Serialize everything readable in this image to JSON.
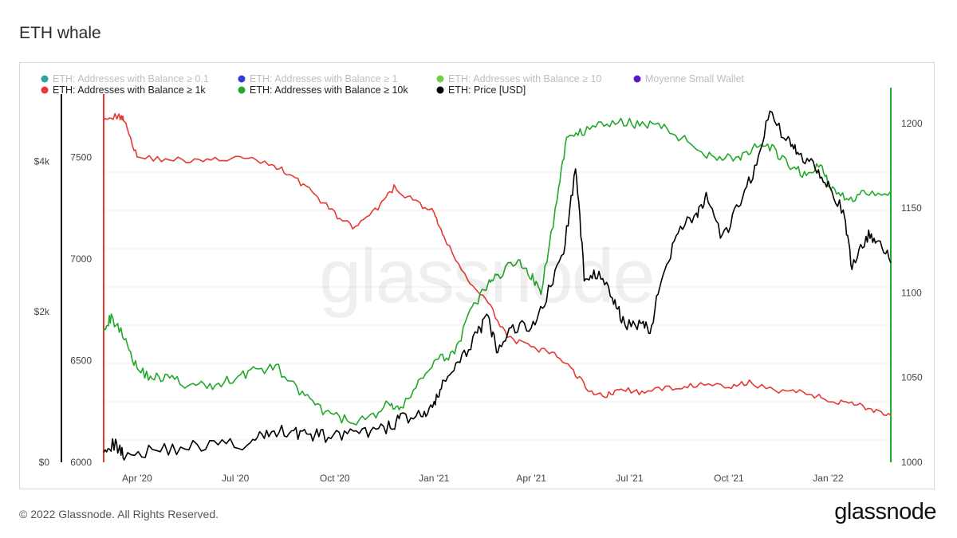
{
  "page": {
    "title": "ETH whale",
    "footer": "© 2022 Glassnode. All Rights Reserved.",
    "brand": "glassnode",
    "watermark": "glassnode"
  },
  "chart_data": {
    "type": "line",
    "x_ticks": [
      "Apr '20",
      "Jul '20",
      "Oct '20",
      "Jan '21",
      "Apr '21",
      "Jul '21",
      "Oct '21",
      "Jan '22"
    ],
    "x_range": [
      "2020-03-01",
      "2022-02-28"
    ],
    "axes": {
      "price_axis": {
        "ticks": [
          "$0",
          "$2k",
          "$4k"
        ],
        "range": [
          0,
          5000
        ],
        "color": "#000000"
      },
      "count_1k_axis": {
        "ticks": [
          "6000",
          "6500",
          "7000",
          "7500"
        ],
        "range": [
          6000,
          7850
        ],
        "color": "#e53935"
      },
      "count_10k_axis": {
        "ticks": [
          "1000",
          "1050",
          "1100",
          "1150",
          "1200"
        ],
        "range": [
          1000,
          1222
        ],
        "color": "#22a82a"
      }
    },
    "grid": true,
    "legend": [
      {
        "label": "ETH: Addresses with Balance ≥ 0.1",
        "color": "#2ba3a3",
        "disabled": true
      },
      {
        "label": "ETH: Addresses with Balance ≥ 1",
        "color": "#2f3fd0",
        "disabled": true
      },
      {
        "label": "ETH: Addresses with Balance ≥ 10",
        "color": "#6fcf45",
        "disabled": true
      },
      {
        "label": "Moyenne Small Wallet",
        "color": "#5a17c8",
        "disabled": true
      },
      {
        "label": "ETH: Addresses with Balance ≥ 1k",
        "color": "#e53935",
        "disabled": false
      },
      {
        "label": "ETH: Addresses with Balance ≥ 10k",
        "color": "#22a82a",
        "disabled": false
      },
      {
        "label": "ETH: Price [USD]",
        "color": "#000000",
        "disabled": false
      }
    ],
    "series": [
      {
        "name": "ETH: Addresses with Balance ≥ 1k",
        "axis": "count_1k_axis",
        "color": "#e53935",
        "x": [
          "2020-03-01",
          "2020-03-15",
          "2020-03-20",
          "2020-04-01",
          "2020-05-01",
          "2020-06-01",
          "2020-07-01",
          "2020-08-01",
          "2020-08-20",
          "2020-09-10",
          "2020-10-01",
          "2020-10-20",
          "2020-11-10",
          "2020-11-25",
          "2020-12-15",
          "2021-01-01",
          "2021-01-10",
          "2021-02-01",
          "2021-02-20",
          "2021-03-10",
          "2021-04-01",
          "2021-04-20",
          "2021-05-10",
          "2021-05-25",
          "2021-06-10",
          "2021-06-25",
          "2021-07-15",
          "2021-08-10",
          "2021-09-01",
          "2021-10-01",
          "2021-10-20",
          "2021-11-20",
          "2021-12-15",
          "2022-01-01",
          "2022-01-20",
          "2022-02-10",
          "2022-02-28"
        ],
        "values": [
          7700,
          7700,
          7690,
          7500,
          7490,
          7480,
          7500,
          7470,
          7420,
          7330,
          7220,
          7150,
          7250,
          7350,
          7280,
          7230,
          7100,
          6900,
          6780,
          6620,
          6560,
          6540,
          6450,
          6350,
          6330,
          6360,
          6340,
          6370,
          6380,
          6370,
          6390,
          6350,
          6340,
          6300,
          6300,
          6260,
          6230
        ]
      },
      {
        "name": "ETH: Addresses with Balance ≥ 10k",
        "axis": "count_10k_axis",
        "color": "#22a82a",
        "x": [
          "2020-03-01",
          "2020-03-08",
          "2020-03-20",
          "2020-04-01",
          "2020-04-15",
          "2020-05-01",
          "2020-05-20",
          "2020-06-10",
          "2020-07-01",
          "2020-07-20",
          "2020-08-10",
          "2020-09-01",
          "2020-09-20",
          "2020-10-10",
          "2020-11-01",
          "2020-11-20",
          "2020-12-01",
          "2020-12-20",
          "2021-01-05",
          "2021-01-20",
          "2021-02-05",
          "2021-02-20",
          "2021-03-01",
          "2021-03-20",
          "2021-04-01",
          "2021-04-10",
          "2021-04-25",
          "2021-05-05",
          "2021-05-20",
          "2021-06-10",
          "2021-07-01",
          "2021-07-20",
          "2021-08-10",
          "2021-09-01",
          "2021-09-20",
          "2021-10-10",
          "2021-10-25",
          "2021-11-10",
          "2021-11-25",
          "2021-12-10",
          "2021-12-25",
          "2022-01-05",
          "2022-01-20",
          "2022-02-05",
          "2022-02-28"
        ],
        "values": [
          1080,
          1085,
          1075,
          1055,
          1050,
          1050,
          1045,
          1045,
          1050,
          1055,
          1055,
          1040,
          1030,
          1025,
          1025,
          1035,
          1030,
          1050,
          1060,
          1065,
          1090,
          1105,
          1110,
          1120,
          1110,
          1100,
          1155,
          1195,
          1195,
          1200,
          1200,
          1200,
          1195,
          1185,
          1180,
          1180,
          1185,
          1185,
          1175,
          1170,
          1175,
          1160,
          1155,
          1160,
          1160
        ]
      },
      {
        "name": "ETH: Price [USD]",
        "axis": "price_axis",
        "color": "#000000",
        "x": [
          "2020-03-01",
          "2020-03-12",
          "2020-03-20",
          "2020-04-15",
          "2020-05-15",
          "2020-06-15",
          "2020-07-15",
          "2020-08-01",
          "2020-08-20",
          "2020-09-05",
          "2020-09-20",
          "2020-10-10",
          "2020-11-01",
          "2020-11-20",
          "2020-12-01",
          "2020-12-20",
          "2021-01-01",
          "2021-01-10",
          "2021-01-25",
          "2021-02-10",
          "2021-02-20",
          "2021-03-01",
          "2021-03-15",
          "2021-04-01",
          "2021-04-15",
          "2021-05-01",
          "2021-05-12",
          "2021-05-20",
          "2021-06-01",
          "2021-06-15",
          "2021-06-25",
          "2021-07-10",
          "2021-07-20",
          "2021-08-01",
          "2021-08-15",
          "2021-09-01",
          "2021-09-10",
          "2021-09-25",
          "2021-10-10",
          "2021-10-25",
          "2021-11-08",
          "2021-11-25",
          "2021-12-05",
          "2021-12-20",
          "2022-01-01",
          "2022-01-15",
          "2022-01-23",
          "2022-02-05",
          "2022-02-15",
          "2022-02-28"
        ],
        "values": [
          220,
          230,
          110,
          160,
          200,
          240,
          240,
          400,
          420,
          370,
          350,
          360,
          390,
          460,
          590,
          620,
          730,
          1100,
          1300,
          1750,
          1900,
          1450,
          1800,
          1800,
          2200,
          2800,
          3900,
          2500,
          2500,
          2200,
          1850,
          1850,
          1750,
          2500,
          3100,
          3300,
          3500,
          2950,
          3400,
          3900,
          4650,
          4250,
          4100,
          3950,
          3700,
          3300,
          2600,
          3000,
          3000,
          2650
        ]
      }
    ]
  }
}
